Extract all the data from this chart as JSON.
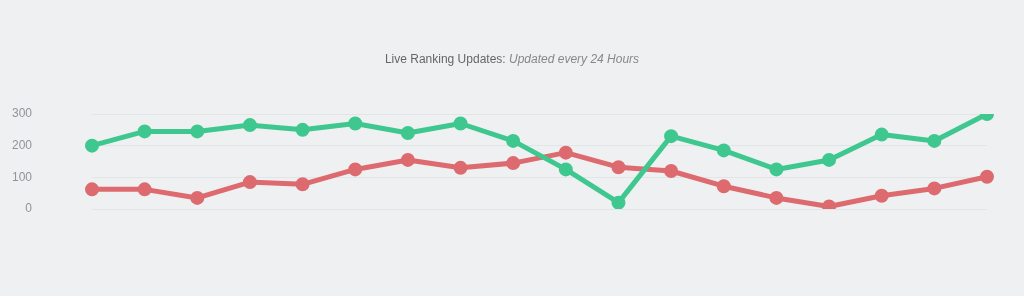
{
  "chart_data": {
    "type": "line",
    "title": "Live Ranking Updates:",
    "subtitle": "Updated every 24 Hours",
    "categories": [
      null,
      null,
      null,
      null,
      null,
      null,
      null,
      null,
      null,
      null,
      null,
      null,
      null,
      null,
      null,
      null,
      null,
      null
    ],
    "series": [
      {
        "color": "#3ec78e",
        "values": [
          200,
          245,
          245,
          265,
          250,
          270,
          240,
          270,
          215,
          125,
          20,
          230,
          185,
          125,
          155,
          235,
          215,
          300
        ]
      },
      {
        "color": "#dd6a6e",
        "values": [
          62,
          62,
          35,
          85,
          78,
          125,
          155,
          130,
          145,
          178,
          132,
          120,
          72,
          35,
          8,
          42,
          65,
          102
        ]
      }
    ],
    "ylim": [
      0,
      300
    ],
    "yticks": [
      0,
      100,
      200,
      300
    ],
    "grid": "y",
    "legend": false,
    "marker": "circle",
    "line_style": "solid",
    "tick_labels": "y"
  }
}
